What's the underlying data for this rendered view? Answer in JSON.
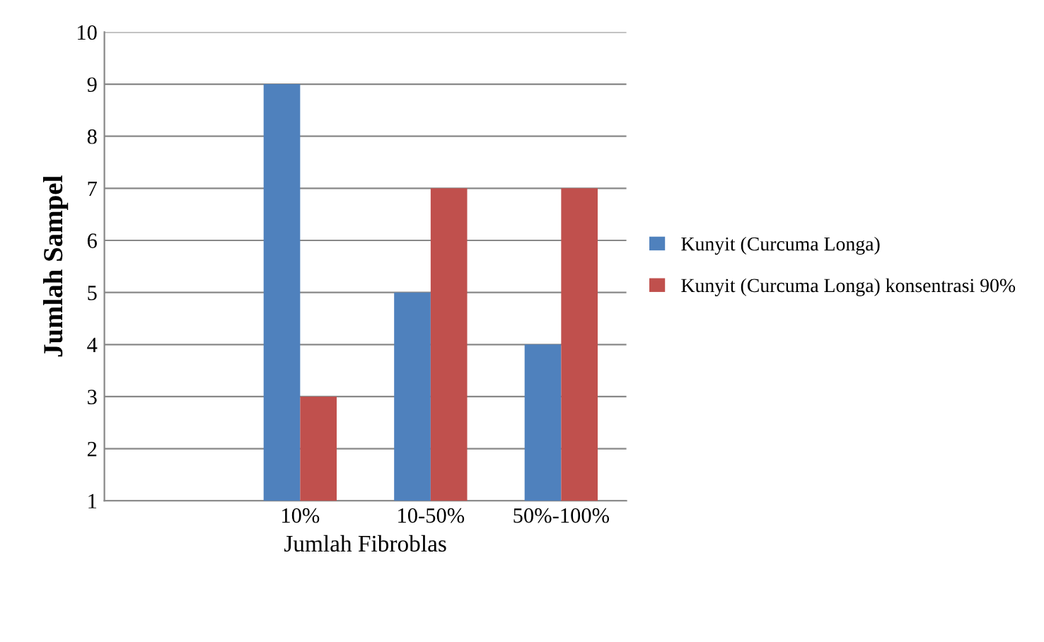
{
  "chart_data": {
    "type": "bar",
    "xlabel": "Jumlah Fibroblas",
    "ylabel": "Jumlah Sampel",
    "categories": [
      null,
      "10%",
      "10-50%",
      "50%-100%"
    ],
    "series": [
      {
        "name": "Kunyit (Curcuma Longa)",
        "color": "#4f81bd",
        "values": [
          null,
          9,
          5,
          4
        ]
      },
      {
        "name": "Kunyit (Curcuma Longa) konsentrasi 90%",
        "color": "#c0504d",
        "values": [
          null,
          3,
          7,
          7
        ]
      }
    ],
    "ylim": [
      1,
      10
    ],
    "yticks": [
      1,
      2,
      3,
      4,
      5,
      6,
      7,
      8,
      9,
      10
    ],
    "grid": "y",
    "legend": "right"
  }
}
